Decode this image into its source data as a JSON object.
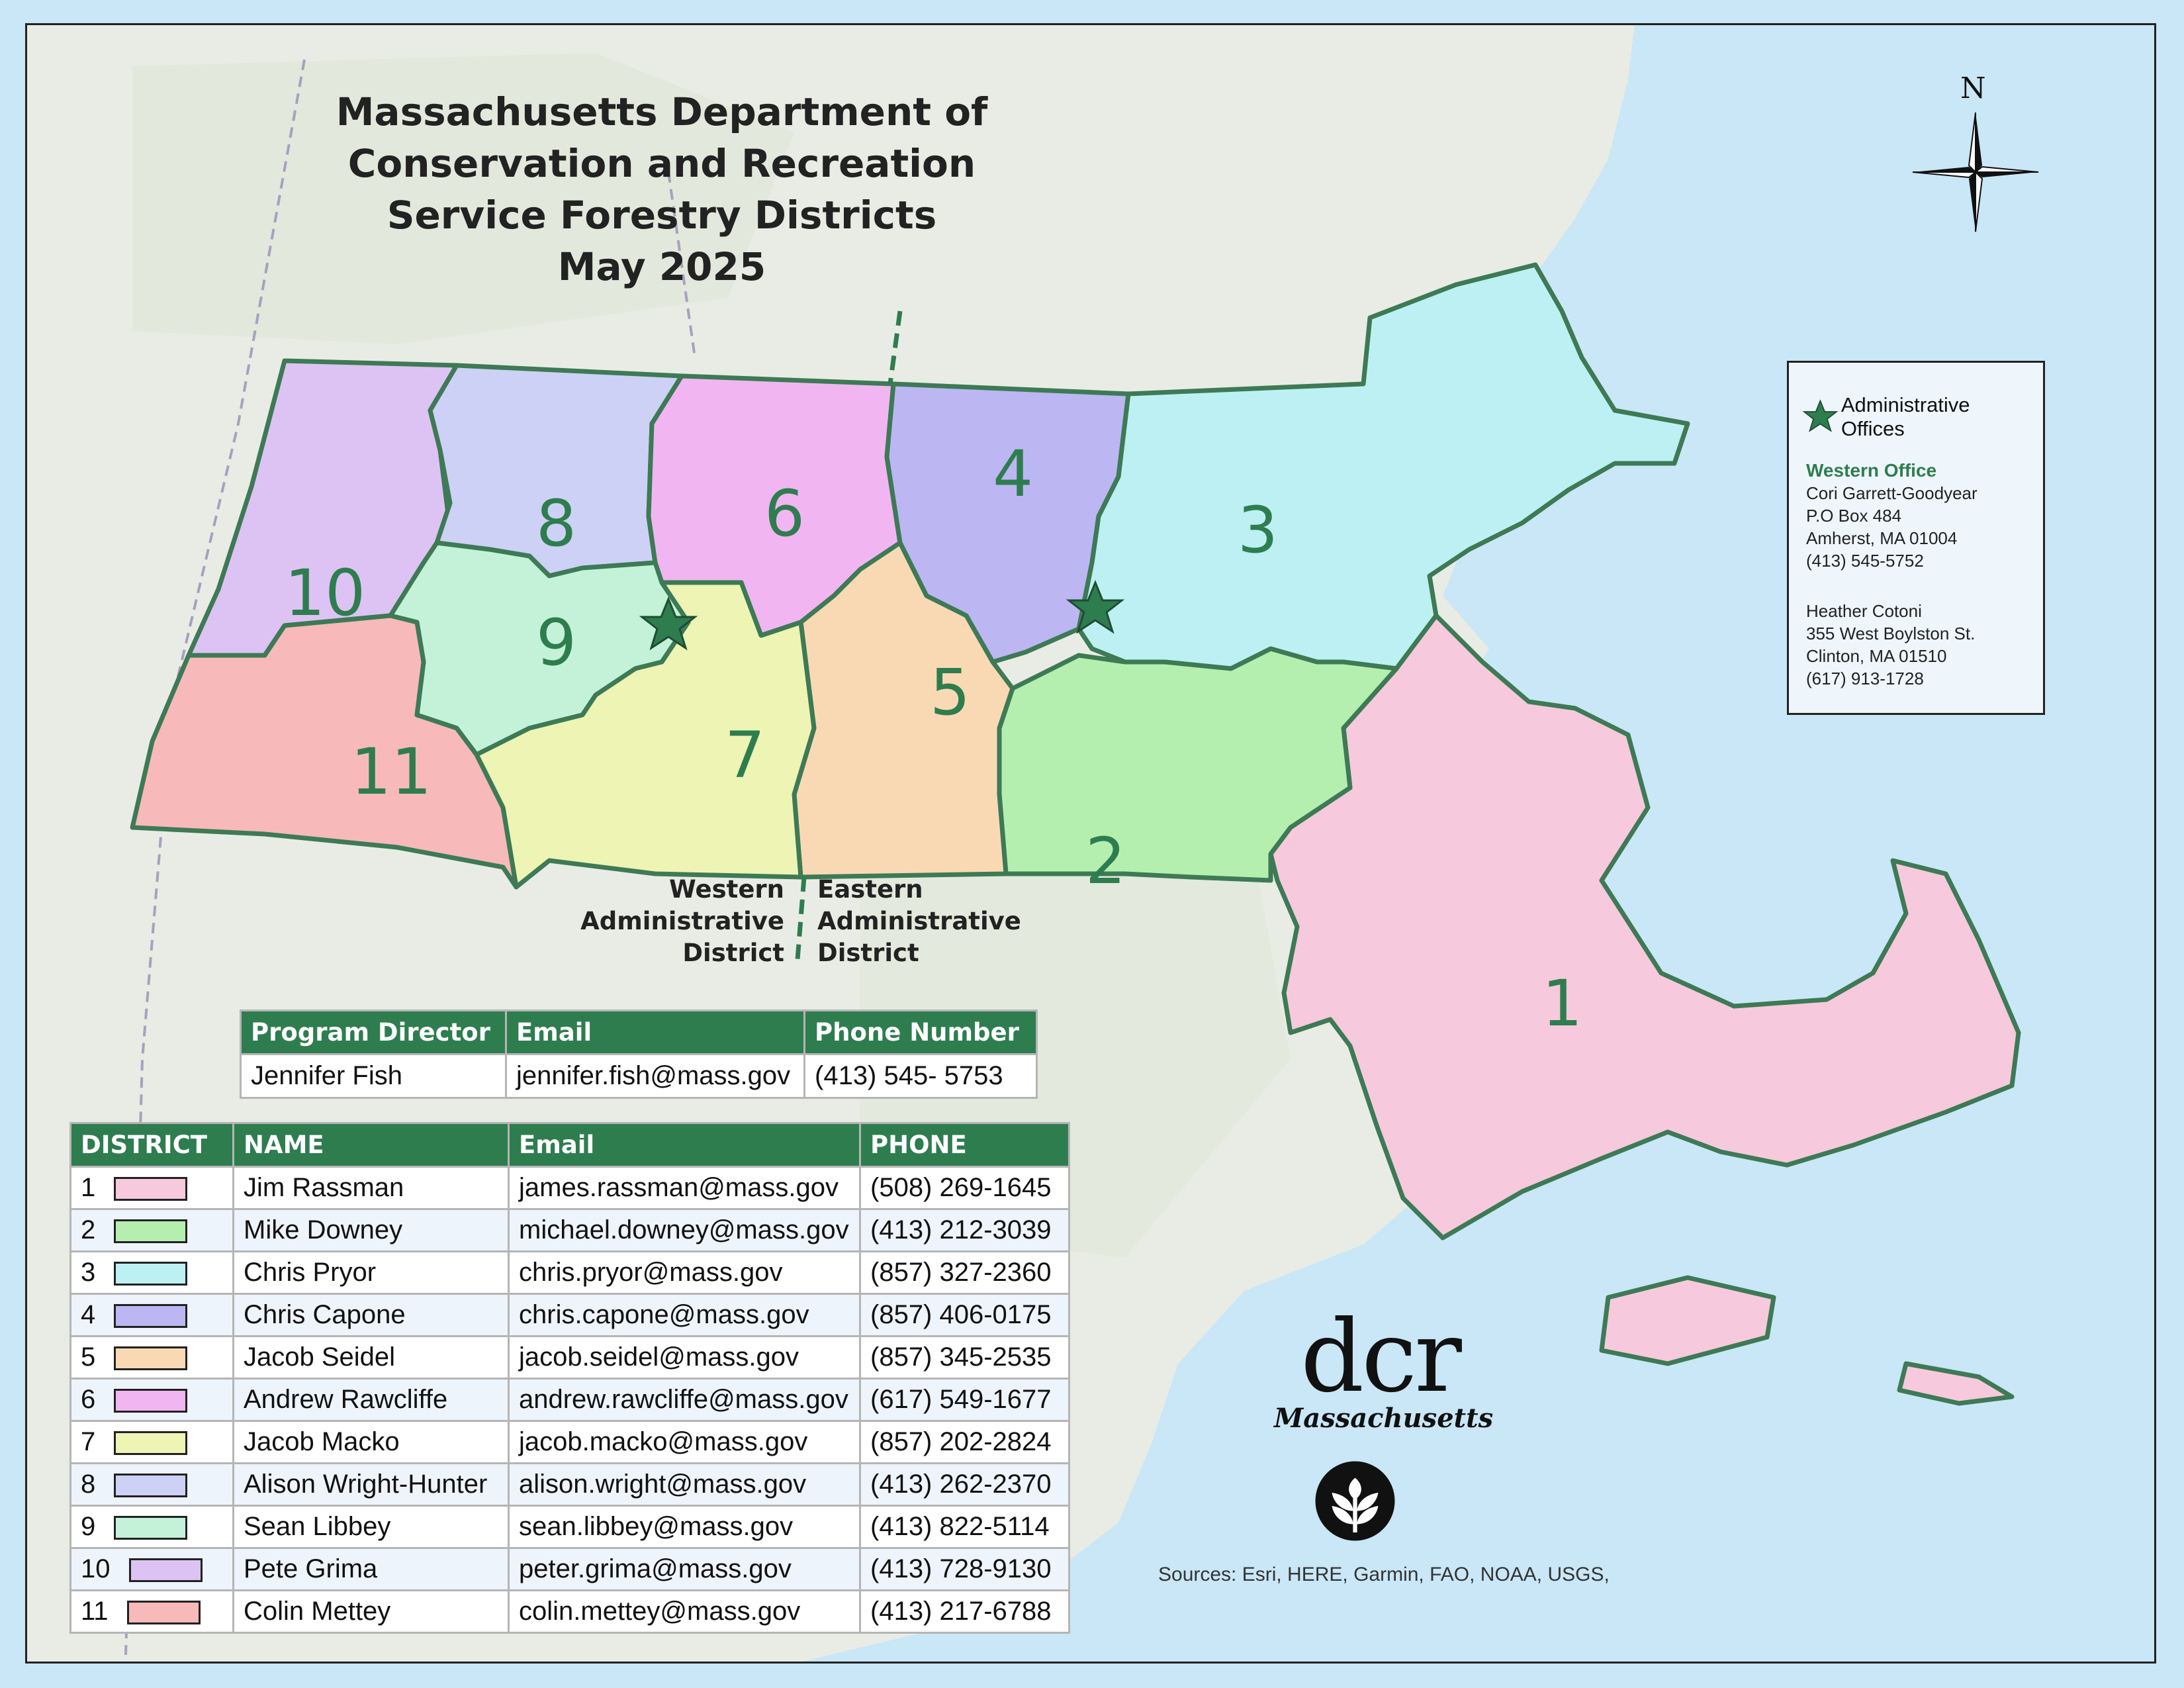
{
  "title": {
    "line1": "Massachusetts Department of Conservation and Recreation",
    "line2": "Service Forestry Districts",
    "line3": "May 2025"
  },
  "north_arrow": {
    "label": "N",
    "icon": "north-arrow-icon"
  },
  "legend": {
    "symbol_label": "Administrative Offices",
    "western_office": {
      "name": "Western Office",
      "contact": "Cori Garrett-Goodyear",
      "addr1": "P.O Box 484",
      "addr2": "Amherst, MA 01004",
      "phone": "(413) 545-5752"
    },
    "eastern_office": {
      "contact": "Heather Cotoni",
      "addr1": "355 West Boylston St.",
      "addr2": "Clinton, MA 01510",
      "phone": "(617) 913-1728"
    }
  },
  "admin_districts": {
    "west": {
      "l1": "Western",
      "l2": "Administrative",
      "l3": "District"
    },
    "east": {
      "l1": "Eastern",
      "l2": "Administrative",
      "l3": "District"
    }
  },
  "district_numbers": [
    "1",
    "2",
    "3",
    "4",
    "5",
    "6",
    "7",
    "8",
    "9",
    "10",
    "11"
  ],
  "director_table": {
    "headers": [
      "Program Director",
      "Email",
      "Phone Number"
    ],
    "row": [
      "Jennifer Fish",
      "jennifer.fish@mass.gov",
      "(413) 545- 5753"
    ]
  },
  "district_table": {
    "headers": [
      "DISTRICT",
      "NAME",
      "Email",
      "PHONE"
    ],
    "rows": [
      {
        "num": "1",
        "color": "#f7c9dc",
        "name": "Jim Rassman",
        "email": "james.rassman@mass.gov",
        "phone": "(508) 269-1645"
      },
      {
        "num": "2",
        "color": "#b5efb0",
        "name": "Mike Downey",
        "email": "michael.downey@mass.gov",
        "phone": "(413) 212-3039"
      },
      {
        "num": "3",
        "color": "#bdf0f2",
        "name": "Chris Pryor",
        "email": "chris.pryor@mass.gov",
        "phone": "(857) 327-2360"
      },
      {
        "num": "4",
        "color": "#bcb6f3",
        "name": "Chris Capone",
        "email": "chris.capone@mass.gov",
        "phone": "(857) 406-0175"
      },
      {
        "num": "5",
        "color": "#f9d9b4",
        "name": "Jacob Seidel",
        "email": "jacob.seidel@mass.gov",
        "phone": "(857) 345-2535"
      },
      {
        "num": "6",
        "color": "#f1b6f1",
        "name": "Andrew Rawcliffe",
        "email": "andrew.rawcliffe@mass.gov",
        "phone": "(617) 549-1677"
      },
      {
        "num": "7",
        "color": "#eef4b4",
        "name": "Jacob Macko",
        "email": "jacob.macko@mass.gov",
        "phone": "(857) 202-2824"
      },
      {
        "num": "8",
        "color": "#cdd1f5",
        "name": "Alison Wright-Hunter",
        "email": "alison.wright@mass.gov",
        "phone": "(413) 262-2370"
      },
      {
        "num": "9",
        "color": "#c4f2d9",
        "name": "Sean Libbey",
        "email": "sean.libbey@mass.gov",
        "phone": "(413) 822-5114"
      },
      {
        "num": "10",
        "color": "#ddc3f3",
        "name": "Pete Grima",
        "email": "peter.grima@mass.gov",
        "phone": "(413) 728-9130"
      },
      {
        "num": "11",
        "color": "#f7b9b9",
        "name": "Colin Mettey",
        "email": "colin.mettey@mass.gov",
        "phone": "(413) 217-6788"
      }
    ]
  },
  "logo": {
    "text": "dcr",
    "state": "Massachusetts"
  },
  "sources": "Sources: Esri, HERE, Garmin, FAO, NOAA, USGS,"
}
